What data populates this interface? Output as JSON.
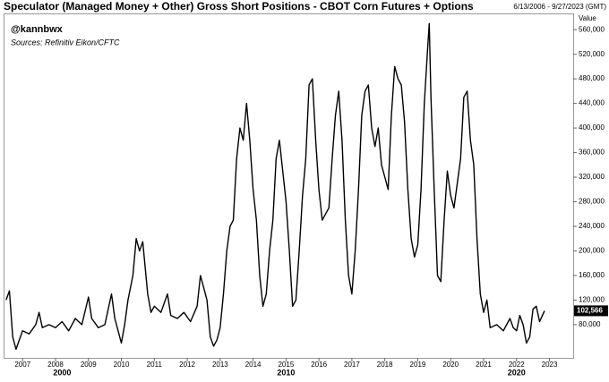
{
  "chart_data": {
    "type": "line",
    "title": "Speculator (Managed Money + Other) Gross Short Positions - CBOT Corn Futures + Options",
    "date_range": "6/13/2006 - 9/27/2023 (GMT)",
    "author": "@kannbwx",
    "source": "Sources: Refinitiv Eikon/CFTC",
    "y_axis_label": "Value",
    "last_value_label": "102,566",
    "grid": false,
    "xlim": [
      2006.45,
      2023.72
    ],
    "xticks": [
      2007,
      2008,
      2009,
      2010,
      2011,
      2012,
      2013,
      2014,
      2015,
      2016,
      2017,
      2018,
      2019,
      2020,
      2021,
      2022,
      2023
    ],
    "decade_labels": [
      {
        "value": 2008.2,
        "label": "2000"
      },
      {
        "value": 2015.0,
        "label": "2010"
      },
      {
        "value": 2022.0,
        "label": "2020"
      }
    ],
    "ylim": [
      26000,
      585000
    ],
    "yticks": [
      {
        "value": 80000,
        "label": "80,000"
      },
      {
        "value": 120000,
        "label": "120,000"
      },
      {
        "value": 160000,
        "label": "160,000"
      },
      {
        "value": 200000,
        "label": "200,000"
      },
      {
        "value": 240000,
        "label": "240,000"
      },
      {
        "value": 280000,
        "label": "280,000"
      },
      {
        "value": 320000,
        "label": "320,000"
      },
      {
        "value": 360000,
        "label": "360,000"
      },
      {
        "value": 400000,
        "label": "400,000"
      },
      {
        "value": 440000,
        "label": "440,000"
      },
      {
        "value": 480000,
        "label": "480,000"
      },
      {
        "value": 520000,
        "label": "520,000"
      },
      {
        "value": 560000,
        "label": "560,000"
      }
    ],
    "series": [
      {
        "name": "Gross Short Positions",
        "color": "#000000",
        "x": [
          2006.5,
          2006.6,
          2006.7,
          2006.8,
          2006.9,
          2007.0,
          2007.2,
          2007.4,
          2007.5,
          2007.6,
          2007.8,
          2008.0,
          2008.2,
          2008.4,
          2008.6,
          2008.8,
          2009.0,
          2009.1,
          2009.3,
          2009.5,
          2009.7,
          2009.8,
          2009.9,
          2010.0,
          2010.1,
          2010.2,
          2010.35,
          2010.45,
          2010.55,
          2010.65,
          2010.8,
          2010.9,
          2011.0,
          2011.2,
          2011.4,
          2011.5,
          2011.7,
          2011.9,
          2012.1,
          2012.3,
          2012.4,
          2012.5,
          2012.6,
          2012.7,
          2012.8,
          2012.9,
          2013.0,
          2013.1,
          2013.2,
          2013.3,
          2013.4,
          2013.5,
          2013.6,
          2013.7,
          2013.8,
          2013.9,
          2014.0,
          2014.1,
          2014.2,
          2014.3,
          2014.4,
          2014.5,
          2014.6,
          2014.7,
          2014.8,
          2014.9,
          2015.0,
          2015.1,
          2015.2,
          2015.3,
          2015.4,
          2015.5,
          2015.6,
          2015.7,
          2015.8,
          2015.9,
          2016.0,
          2016.1,
          2016.3,
          2016.4,
          2016.5,
          2016.6,
          2016.7,
          2016.8,
          2016.9,
          2017.0,
          2017.1,
          2017.2,
          2017.3,
          2017.4,
          2017.5,
          2017.6,
          2017.7,
          2017.8,
          2017.9,
          2018.0,
          2018.1,
          2018.2,
          2018.3,
          2018.4,
          2018.5,
          2018.6,
          2018.7,
          2018.8,
          2018.9,
          2019.0,
          2019.1,
          2019.2,
          2019.3,
          2019.35,
          2019.4,
          2019.5,
          2019.6,
          2019.7,
          2019.8,
          2019.9,
          2020.0,
          2020.1,
          2020.2,
          2020.3,
          2020.4,
          2020.5,
          2020.6,
          2020.7,
          2020.8,
          2020.9,
          2021.0,
          2021.1,
          2021.2,
          2021.4,
          2021.6,
          2021.8,
          2021.9,
          2022.0,
          2022.1,
          2022.2,
          2022.3,
          2022.4,
          2022.5,
          2022.6,
          2022.7,
          2022.85
        ],
        "values": [
          120000,
          135000,
          60000,
          40000,
          55000,
          70000,
          65000,
          80000,
          100000,
          75000,
          80000,
          75000,
          85000,
          70000,
          90000,
          80000,
          125000,
          90000,
          75000,
          80000,
          130000,
          90000,
          70000,
          50000,
          80000,
          120000,
          160000,
          220000,
          200000,
          215000,
          130000,
          100000,
          110000,
          100000,
          130000,
          95000,
          90000,
          100000,
          85000,
          110000,
          160000,
          140000,
          120000,
          60000,
          45000,
          55000,
          75000,
          130000,
          200000,
          240000,
          250000,
          350000,
          400000,
          380000,
          440000,
          380000,
          300000,
          250000,
          160000,
          110000,
          130000,
          200000,
          250000,
          350000,
          380000,
          330000,
          280000,
          200000,
          110000,
          120000,
          200000,
          290000,
          350000,
          470000,
          480000,
          380000,
          300000,
          250000,
          270000,
          350000,
          420000,
          460000,
          380000,
          250000,
          160000,
          130000,
          200000,
          300000,
          420000,
          460000,
          470000,
          400000,
          370000,
          400000,
          340000,
          320000,
          300000,
          420000,
          500000,
          480000,
          470000,
          410000,
          300000,
          220000,
          190000,
          210000,
          300000,
          440000,
          530000,
          570000,
          450000,
          300000,
          160000,
          150000,
          250000,
          330000,
          290000,
          270000,
          310000,
          350000,
          450000,
          460000,
          380000,
          340000,
          220000,
          130000,
          100000,
          120000,
          75000,
          80000,
          70000,
          90000,
          75000,
          70000,
          95000,
          80000,
          50000,
          60000,
          105000,
          110000,
          85000,
          102566
        ]
      }
    ]
  }
}
